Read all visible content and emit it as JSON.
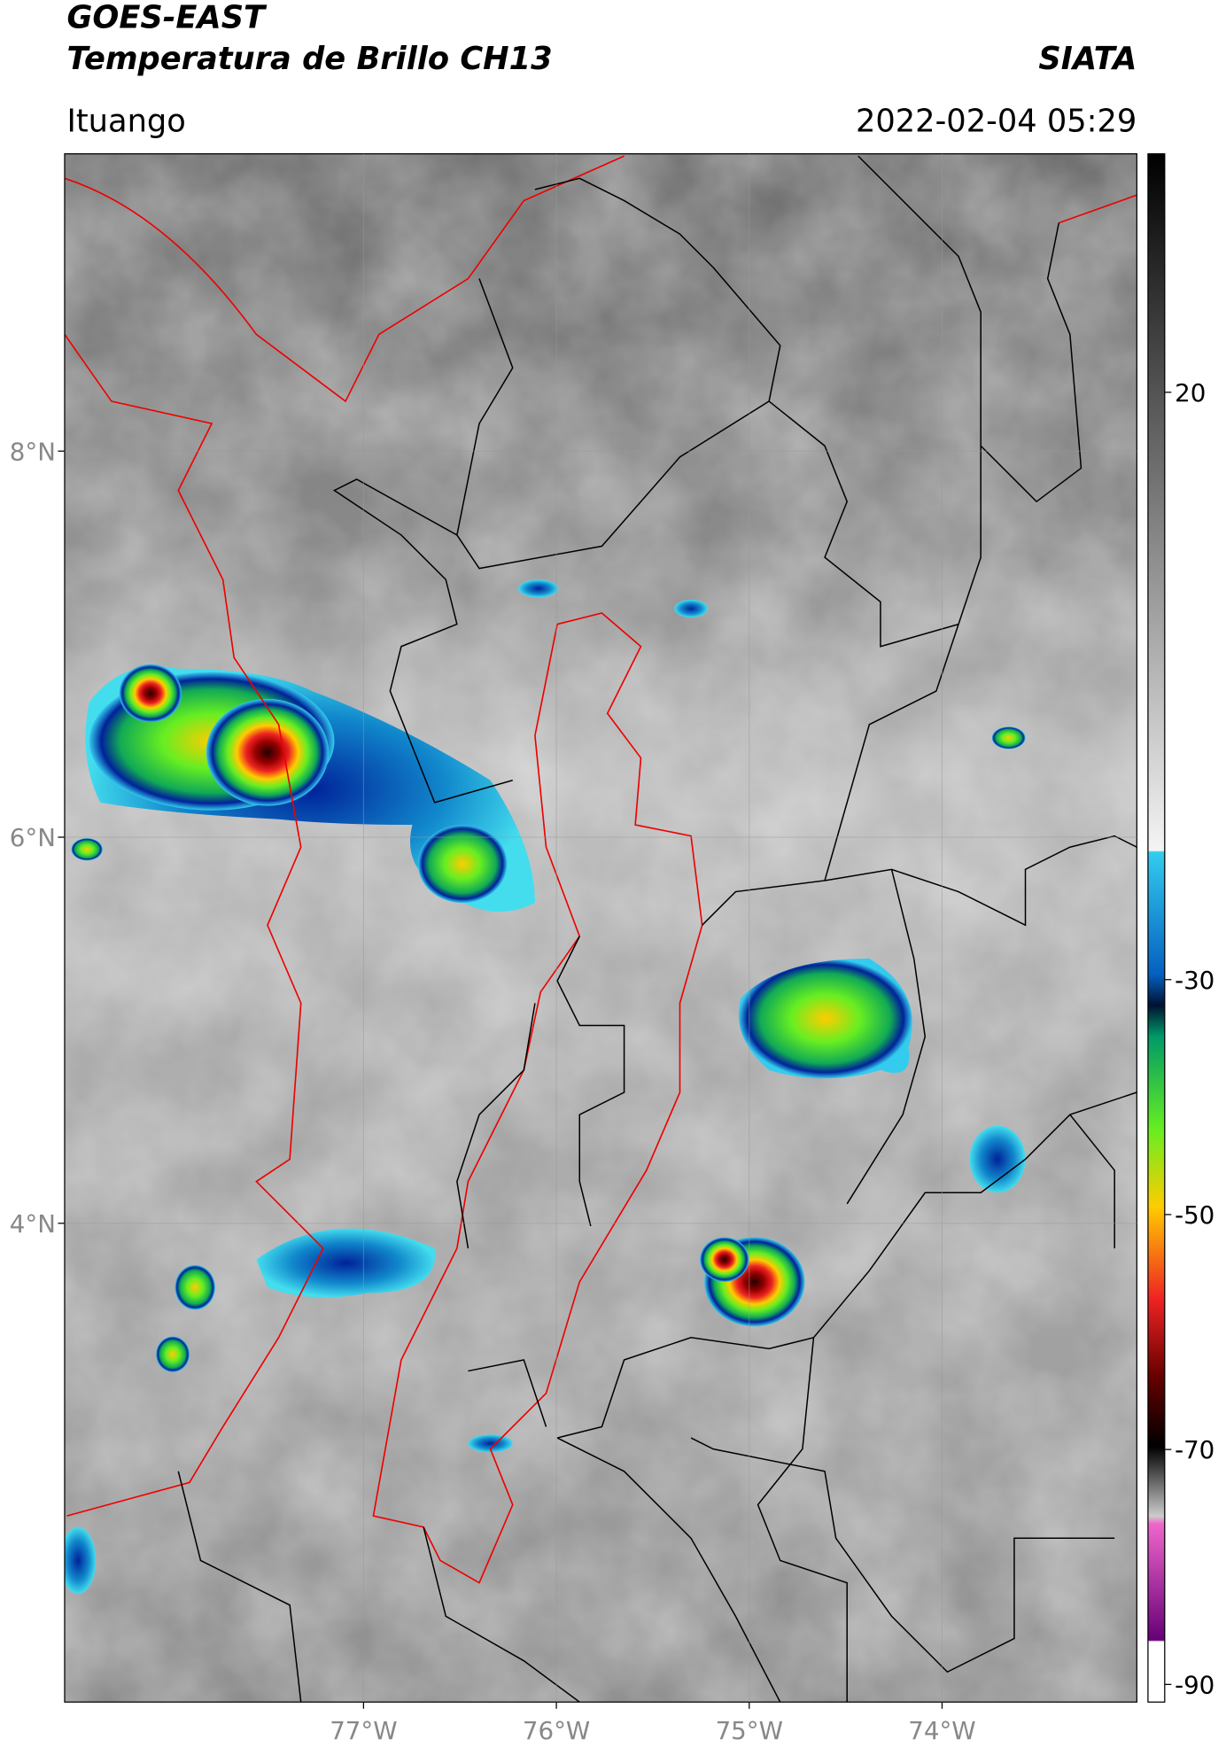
{
  "header": {
    "title": "GOES-EAST",
    "subtitle": "Temperatura de Brillo CH13",
    "source": "SIATA",
    "location": "Ituango",
    "datetime": "2022-02-04 05:29"
  },
  "map": {
    "xlim": [
      -78.55,
      -72.99
    ],
    "ylim": [
      1.52,
      9.54
    ],
    "xticks": [
      {
        "value": -77,
        "label": "77°W"
      },
      {
        "value": -76,
        "label": "76°W"
      },
      {
        "value": -75,
        "label": "75°W"
      },
      {
        "value": -74,
        "label": "74°W"
      }
    ],
    "yticks": [
      {
        "value": 8,
        "label": "8°N"
      },
      {
        "value": 6,
        "label": "6°N"
      },
      {
        "value": 4,
        "label": "4°N"
      }
    ],
    "grid": true
  },
  "colorbar": {
    "lim": [
      -91.5,
      40.3
    ],
    "ticks": [
      20,
      -30,
      -50,
      -70,
      -90
    ]
  }
}
